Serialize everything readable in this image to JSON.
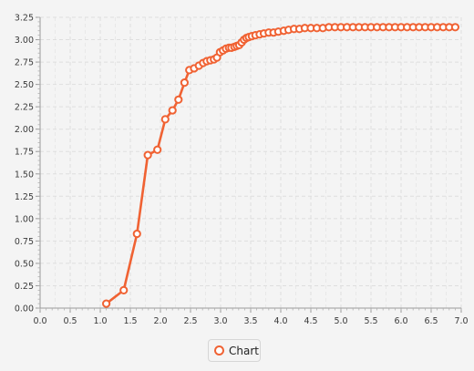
{
  "chart_data": {
    "type": "line",
    "title": "",
    "xlabel": "",
    "ylabel": "",
    "xlim": [
      0.0,
      7.0
    ],
    "ylim": [
      0.0,
      3.25
    ],
    "x_ticks": [
      "0.0",
      "0.5",
      "1.0",
      "1.5",
      "2.0",
      "2.5",
      "3.0",
      "3.5",
      "4.0",
      "4.5",
      "5.0",
      "5.5",
      "6.0",
      "6.5",
      "7.0"
    ],
    "y_ticks": [
      "0.00",
      "0.25",
      "0.50",
      "0.75",
      "1.00",
      "1.25",
      "1.50",
      "1.75",
      "2.00",
      "2.25",
      "2.50",
      "2.75",
      "3.00",
      "3.25"
    ],
    "grid": true,
    "legend_position": "bottom",
    "series": [
      {
        "name": "Chart",
        "color": "#f06233",
        "points": [
          [
            1.1,
            0.05
          ],
          [
            1.39,
            0.2
          ],
          [
            1.61,
            0.83
          ],
          [
            1.79,
            1.71
          ],
          [
            1.95,
            1.77
          ],
          [
            2.08,
            2.11
          ],
          [
            2.2,
            2.21
          ],
          [
            2.3,
            2.33
          ],
          [
            2.4,
            2.52
          ],
          [
            2.48,
            2.66
          ],
          [
            2.56,
            2.68
          ],
          [
            2.64,
            2.71
          ],
          [
            2.71,
            2.74
          ],
          [
            2.77,
            2.76
          ],
          [
            2.83,
            2.77
          ],
          [
            2.89,
            2.78
          ],
          [
            2.94,
            2.8
          ],
          [
            2.99,
            2.86
          ],
          [
            3.04,
            2.88
          ],
          [
            3.09,
            2.9
          ],
          [
            3.14,
            2.91
          ],
          [
            3.18,
            2.91
          ],
          [
            3.23,
            2.92
          ],
          [
            3.27,
            2.93
          ],
          [
            3.31,
            2.94
          ],
          [
            3.35,
            2.97
          ],
          [
            3.39,
            3.0
          ],
          [
            3.43,
            3.02
          ],
          [
            3.47,
            3.03
          ],
          [
            3.52,
            3.04
          ],
          [
            3.58,
            3.05
          ],
          [
            3.65,
            3.06
          ],
          [
            3.72,
            3.07
          ],
          [
            3.8,
            3.08
          ],
          [
            3.88,
            3.08
          ],
          [
            3.96,
            3.09
          ],
          [
            4.05,
            3.1
          ],
          [
            4.13,
            3.11
          ],
          [
            4.22,
            3.12
          ],
          [
            4.31,
            3.12
          ],
          [
            4.4,
            3.13
          ],
          [
            4.5,
            3.13
          ],
          [
            4.6,
            3.13
          ],
          [
            4.7,
            3.13
          ],
          [
            4.8,
            3.14
          ],
          [
            4.9,
            3.14
          ],
          [
            5.0,
            3.14
          ],
          [
            5.1,
            3.14
          ],
          [
            5.2,
            3.14
          ],
          [
            5.3,
            3.14
          ],
          [
            5.4,
            3.14
          ],
          [
            5.5,
            3.14
          ],
          [
            5.6,
            3.14
          ],
          [
            5.7,
            3.14
          ],
          [
            5.8,
            3.14
          ],
          [
            5.9,
            3.14
          ],
          [
            6.0,
            3.14
          ],
          [
            6.1,
            3.14
          ],
          [
            6.2,
            3.14
          ],
          [
            6.3,
            3.14
          ],
          [
            6.4,
            3.14
          ],
          [
            6.5,
            3.14
          ],
          [
            6.6,
            3.14
          ],
          [
            6.7,
            3.14
          ],
          [
            6.8,
            3.14
          ],
          [
            6.9,
            3.14
          ]
        ]
      }
    ]
  }
}
